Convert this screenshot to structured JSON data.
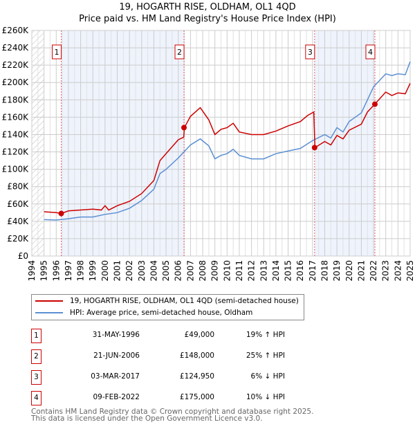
{
  "chart_data": {
    "type": "line",
    "title": "19, HOGARTH RISE, OLDHAM, OL1 4QD",
    "subtitle": "Price paid vs. HM Land Registry's House Price Index (HPI)",
    "xlim": [
      1994,
      2025
    ],
    "ylim": [
      0,
      260000
    ],
    "x_ticks": [
      "1994",
      "1995",
      "1996",
      "1997",
      "1998",
      "1999",
      "2000",
      "2001",
      "2002",
      "2003",
      "2004",
      "2005",
      "2006",
      "2007",
      "2008",
      "2009",
      "2010",
      "2011",
      "2012",
      "2013",
      "2014",
      "2015",
      "2016",
      "2017",
      "2018",
      "2019",
      "2020",
      "2021",
      "2022",
      "2023",
      "2024",
      "2025"
    ],
    "y_ticks": [
      "£0",
      "£20K",
      "£40K",
      "£60K",
      "£80K",
      "£100K",
      "£120K",
      "£140K",
      "£160K",
      "£180K",
      "£200K",
      "£220K",
      "£240K",
      "£260K"
    ],
    "grid": true,
    "series": [
      {
        "name": "19, HOGARTH RISE, OLDHAM, OL1 4QD (semi-detached house)",
        "color": "#cc0000",
        "x": [
          1995,
          1996,
          1996.4,
          1997,
          1998,
          1999,
          1999.7,
          2000,
          2000.3,
          2001,
          2002,
          2003,
          2004,
          2004.5,
          2005,
          2006,
          2006.45,
          2006.5,
          2007,
          2007.8,
          2008.5,
          2009,
          2009.5,
          2010,
          2010.5,
          2011,
          2012,
          2013,
          2014,
          2015,
          2016,
          2016.6,
          2017.1,
          2017.2,
          2018,
          2018.5,
          2019,
          2019.5,
          2020,
          2021,
          2021.5,
          2022.1,
          2023,
          2023.5,
          2024,
          2024.6,
          2025
        ],
        "y": [
          51000,
          50000,
          49000,
          52000,
          53000,
          54000,
          53000,
          58000,
          53000,
          58000,
          63000,
          72000,
          87000,
          110000,
          118000,
          134000,
          137000,
          148000,
          161000,
          171000,
          157000,
          140000,
          146000,
          148000,
          153000,
          143000,
          140000,
          140000,
          144000,
          150000,
          155000,
          162000,
          166000,
          124950,
          132000,
          128000,
          139000,
          135000,
          145000,
          152000,
          166000,
          175000,
          189000,
          185000,
          188000,
          187000,
          199000
        ]
      },
      {
        "name": "HPI: Average price, semi-detached house, Oldham",
        "color": "#5b8fd4",
        "x": [
          1995,
          1996,
          1997,
          1998,
          1999,
          2000,
          2001,
          2002,
          2003,
          2004,
          2004.5,
          2005,
          2006,
          2007,
          2007.8,
          2008.5,
          2009,
          2009.5,
          2010,
          2010.5,
          2011,
          2012,
          2013,
          2014,
          2015,
          2016,
          2017,
          2018,
          2018.5,
          2019,
          2019.5,
          2020,
          2021,
          2021.5,
          2022,
          2023,
          2023.5,
          2024,
          2024.6,
          2025
        ],
        "y": [
          42000,
          41500,
          43000,
          45000,
          45000,
          48000,
          50000,
          55000,
          64000,
          77000,
          95000,
          100000,
          113000,
          128000,
          135000,
          127000,
          112000,
          116000,
          118000,
          123000,
          116000,
          112000,
          112000,
          118000,
          121000,
          124000,
          133000,
          140000,
          136000,
          148000,
          143000,
          155000,
          165000,
          180000,
          195000,
          210000,
          208000,
          210000,
          209000,
          224000
        ]
      }
    ],
    "sales": [
      {
        "label": "1",
        "x": 1996.41,
        "y": 49000,
        "date": "31-MAY-1996",
        "price": "£49,000",
        "hpi": "19% ↑ HPI"
      },
      {
        "label": "2",
        "x": 2006.47,
        "y": 148000,
        "date": "21-JUN-2006",
        "price": "£148,000",
        "hpi": "25% ↑ HPI"
      },
      {
        "label": "3",
        "x": 2017.17,
        "y": 124950,
        "date": "03-MAR-2017",
        "price": "£124,950",
        "hpi": "6% ↓ HPI"
      },
      {
        "label": "4",
        "x": 2022.11,
        "y": 175000,
        "date": "09-FEB-2022",
        "price": "£175,000",
        "hpi": "10% ↓ HPI"
      }
    ]
  },
  "footer": {
    "line1": "Contains HM Land Registry data © Crown copyright and database right 2025.",
    "line2": "This data is licensed under the Open Government Licence v3.0."
  }
}
